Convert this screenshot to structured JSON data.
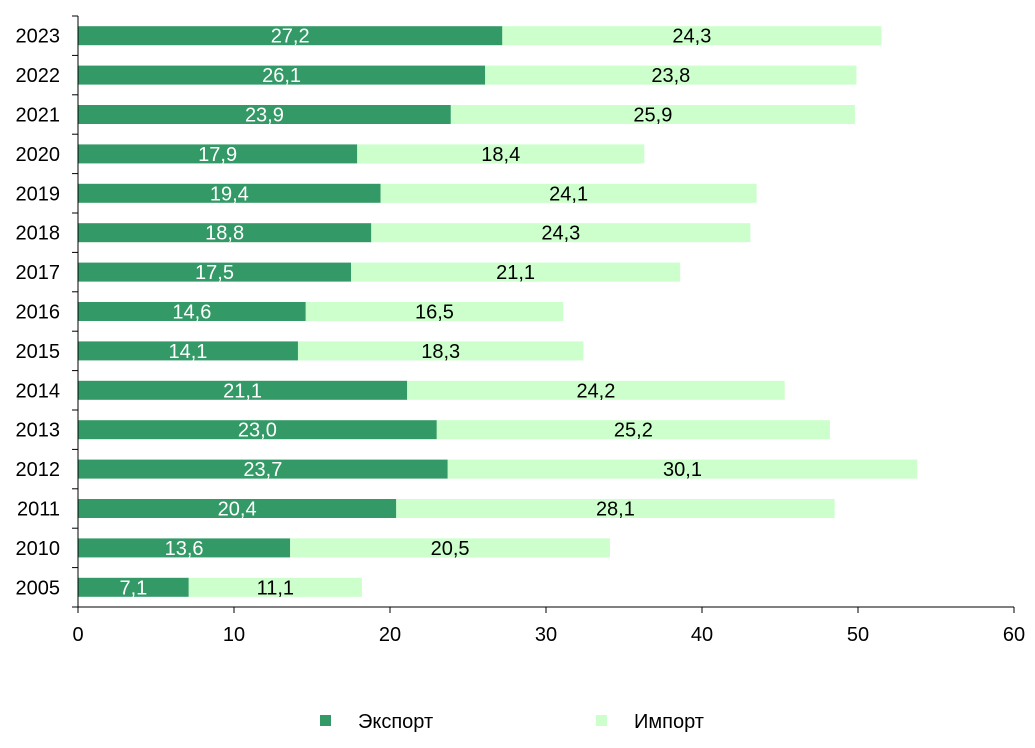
{
  "chart_data": {
    "type": "bar",
    "orientation": "horizontal",
    "stacked": true,
    "categories": [
      "2023",
      "2022",
      "2021",
      "2020",
      "2019",
      "2018",
      "2017",
      "2016",
      "2015",
      "2014",
      "2013",
      "2012",
      "2011",
      "2010",
      "2005"
    ],
    "series": [
      {
        "name": "Экспорт",
        "color": "#339966",
        "values": [
          27.2,
          26.1,
          23.9,
          17.9,
          19.4,
          18.8,
          17.5,
          14.6,
          14.1,
          21.1,
          23.0,
          23.7,
          20.4,
          13.6,
          7.1
        ],
        "labels": [
          "27,2",
          "26,1",
          "23,9",
          "17,9",
          "19,4",
          "18,8",
          "17,5",
          "14,6",
          "14,1",
          "21,1",
          "23,0",
          "23,7",
          "20,4",
          "13,6",
          "7,1"
        ]
      },
      {
        "name": "Импорт",
        "color": "#ccffcc",
        "values": [
          24.3,
          23.8,
          25.9,
          18.4,
          24.1,
          24.3,
          21.1,
          16.5,
          18.3,
          24.2,
          25.2,
          30.1,
          28.1,
          20.5,
          11.1
        ],
        "labels": [
          "24,3",
          "23,8",
          "25,9",
          "18,4",
          "24,1",
          "24,3",
          "21,1",
          "16,5",
          "18,3",
          "24,2",
          "25,2",
          "30,1",
          "28,1",
          "20,5",
          "11,1"
        ]
      }
    ],
    "xlim": [
      0,
      60
    ],
    "xticks": [
      "0",
      "10",
      "20",
      "30",
      "40",
      "50",
      "60"
    ],
    "grid": false,
    "legend": "bottom",
    "title": "",
    "xlabel": "",
    "ylabel": ""
  }
}
